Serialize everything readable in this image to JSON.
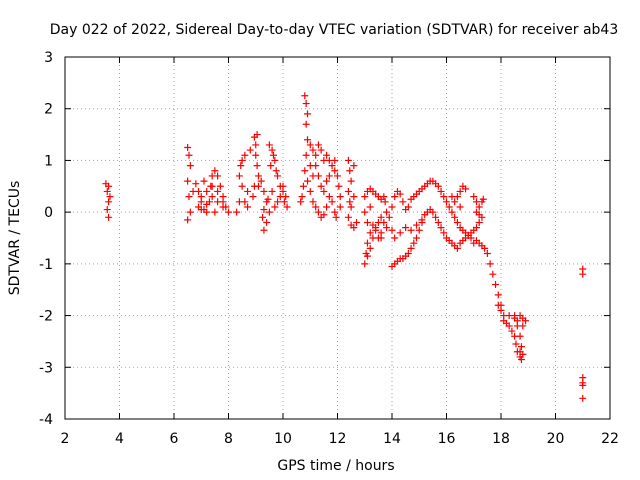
{
  "chart_data": {
    "type": "scatter",
    "title": "Day 022 of 2022, Sidereal Day-to-day VTEC variation (SDTVAR) for receiver ab43",
    "xlabel": "GPS time / hours",
    "ylabel": "SDTVAR / TECUs",
    "xlim": [
      2,
      22
    ],
    "ylim": [
      -4,
      3
    ],
    "xticks": [
      "2",
      "4",
      "6",
      "8",
      "10",
      "12",
      "14",
      "16",
      "18",
      "20",
      "22"
    ],
    "yticks": [
      "-4",
      "-3",
      "-2",
      "-1",
      "0",
      "1",
      "2",
      "3"
    ],
    "grid": true,
    "marker": "+",
    "color": "#ff0000",
    "series": [
      {
        "name": "SDTVAR",
        "points": [
          [
            3.5,
            0.55
          ],
          [
            3.55,
            0.4
          ],
          [
            3.6,
            0.2
          ],
          [
            3.55,
            0.05
          ],
          [
            3.6,
            -0.1
          ],
          [
            3.65,
            0.3
          ],
          [
            3.6,
            0.5
          ],
          [
            6.5,
            1.25
          ],
          [
            6.55,
            1.1
          ],
          [
            6.6,
            0.9
          ],
          [
            6.5,
            0.6
          ],
          [
            6.55,
            0.3
          ],
          [
            6.6,
            0.0
          ],
          [
            6.5,
            -0.15
          ],
          [
            6.7,
            0.4
          ],
          [
            6.8,
            0.55
          ],
          [
            6.9,
            0.4
          ],
          [
            7.0,
            0.2
          ],
          [
            7.1,
            0.05
          ],
          [
            7.2,
            0.0
          ],
          [
            7.3,
            0.2
          ],
          [
            7.35,
            0.5
          ],
          [
            7.4,
            0.7
          ],
          [
            7.5,
            0.8
          ],
          [
            7.6,
            0.7
          ],
          [
            7.7,
            0.5
          ],
          [
            7.8,
            0.3
          ],
          [
            7.9,
            0.1
          ],
          [
            8.0,
            0.0
          ],
          [
            7.8,
            0.2
          ],
          [
            7.6,
            0.4
          ],
          [
            7.4,
            0.5
          ],
          [
            7.2,
            0.4
          ],
          [
            7.0,
            0.3
          ],
          [
            6.9,
            0.1
          ],
          [
            7.0,
            0.05
          ],
          [
            7.2,
            0.15
          ],
          [
            7.4,
            0.3
          ],
          [
            7.6,
            0.2
          ],
          [
            7.8,
            0.1
          ],
          [
            7.5,
            0.0
          ],
          [
            7.1,
            0.6
          ],
          [
            8.3,
            0.0
          ],
          [
            8.4,
            0.2
          ],
          [
            8.5,
            0.5
          ],
          [
            8.4,
            0.7
          ],
          [
            8.45,
            0.9
          ],
          [
            8.6,
            1.1
          ],
          [
            8.8,
            1.2
          ],
          [
            9.0,
            1.1
          ],
          [
            9.05,
            0.9
          ],
          [
            9.1,
            0.7
          ],
          [
            8.95,
            0.5
          ],
          [
            8.7,
            0.4
          ],
          [
            8.6,
            0.2
          ],
          [
            8.7,
            0.1
          ],
          [
            8.9,
            0.3
          ],
          [
            9.1,
            0.5
          ],
          [
            9.2,
            0.6
          ],
          [
            9.3,
            0.4
          ],
          [
            9.4,
            0.2
          ],
          [
            9.5,
            0.0
          ],
          [
            9.4,
            -0.2
          ],
          [
            9.3,
            -0.35
          ],
          [
            9.25,
            -0.1
          ],
          [
            9.3,
            0.05
          ],
          [
            9.45,
            0.25
          ],
          [
            9.6,
            0.4
          ],
          [
            9.7,
            0.1
          ],
          [
            9.8,
            0.2
          ],
          [
            9.0,
            1.3
          ],
          [
            9.05,
            1.5
          ],
          [
            8.95,
            1.45
          ],
          [
            8.5,
            1.0
          ],
          [
            9.5,
            1.3
          ],
          [
            9.6,
            1.2
          ],
          [
            9.7,
            1.0
          ],
          [
            9.75,
            0.8
          ],
          [
            9.8,
            0.7
          ],
          [
            9.9,
            0.5
          ],
          [
            10.0,
            0.4
          ],
          [
            10.1,
            0.3
          ],
          [
            10.15,
            0.1
          ],
          [
            10.05,
            0.2
          ],
          [
            9.55,
            0.9
          ],
          [
            9.65,
            1.1
          ],
          [
            9.9,
            0.3
          ],
          [
            10.0,
            0.5
          ],
          [
            10.8,
            2.25
          ],
          [
            10.85,
            2.1
          ],
          [
            10.9,
            1.9
          ],
          [
            10.85,
            1.7
          ],
          [
            10.9,
            1.4
          ],
          [
            10.85,
            1.1
          ],
          [
            10.8,
            0.8
          ],
          [
            10.75,
            0.5
          ],
          [
            10.7,
            0.3
          ],
          [
            10.65,
            0.2
          ],
          [
            10.9,
            0.6
          ],
          [
            11.0,
            0.4
          ],
          [
            11.1,
            0.2
          ],
          [
            11.2,
            0.1
          ],
          [
            11.3,
            0.0
          ],
          [
            11.4,
            -0.1
          ],
          [
            11.5,
            -0.05
          ],
          [
            11.6,
            0.1
          ],
          [
            11.7,
            0.3
          ],
          [
            11.8,
            0.2
          ],
          [
            11.9,
            0.0
          ],
          [
            11.95,
            -0.1
          ],
          [
            11.0,
            1.3
          ],
          [
            11.1,
            1.2
          ],
          [
            11.2,
            1.1
          ],
          [
            11.3,
            1.3
          ],
          [
            11.4,
            1.2
          ],
          [
            11.5,
            1.0
          ],
          [
            11.6,
            1.1
          ],
          [
            11.7,
            1.0
          ],
          [
            11.8,
            0.9
          ],
          [
            11.9,
            0.8
          ],
          [
            11.7,
            0.7
          ],
          [
            11.6,
            0.6
          ],
          [
            11.5,
            0.4
          ],
          [
            11.4,
            0.5
          ],
          [
            11.3,
            0.7
          ],
          [
            11.2,
            0.9
          ],
          [
            11.1,
            0.7
          ],
          [
            11.0,
            0.9
          ],
          [
            11.9,
            1.0
          ],
          [
            12.0,
            0.7
          ],
          [
            12.05,
            0.5
          ],
          [
            12.1,
            0.3
          ],
          [
            12.1,
            0.1
          ],
          [
            12.4,
            1.0
          ],
          [
            12.45,
            0.8
          ],
          [
            12.5,
            0.6
          ],
          [
            12.4,
            0.4
          ],
          [
            12.45,
            0.2
          ],
          [
            12.5,
            0.1
          ],
          [
            12.6,
            0.9
          ],
          [
            12.6,
            0.3
          ],
          [
            12.4,
            -0.1
          ],
          [
            12.5,
            -0.25
          ],
          [
            12.6,
            -0.3
          ],
          [
            12.7,
            -0.2
          ],
          [
            13.0,
            0.3
          ],
          [
            13.1,
            0.4
          ],
          [
            13.2,
            0.45
          ],
          [
            13.3,
            0.4
          ],
          [
            13.4,
            0.35
          ],
          [
            13.5,
            0.3
          ],
          [
            13.6,
            0.25
          ],
          [
            13.7,
            0.3
          ],
          [
            13.75,
            0.2
          ],
          [
            13.8,
            0.0
          ],
          [
            13.7,
            -0.2
          ],
          [
            13.6,
            -0.4
          ],
          [
            13.5,
            -0.5
          ],
          [
            13.4,
            -0.35
          ],
          [
            13.3,
            -0.25
          ],
          [
            13.2,
            -0.4
          ],
          [
            13.1,
            -0.6
          ],
          [
            13.05,
            -0.8
          ],
          [
            13.0,
            -1.0
          ],
          [
            13.1,
            -0.85
          ],
          [
            13.2,
            -0.7
          ],
          [
            13.3,
            -0.5
          ],
          [
            13.4,
            -0.3
          ],
          [
            13.5,
            -0.2
          ],
          [
            13.6,
            -0.1
          ],
          [
            13.2,
            0.1
          ],
          [
            13.0,
            0.0
          ],
          [
            13.1,
            -0.2
          ],
          [
            14.0,
            -1.05
          ],
          [
            14.1,
            -1.0
          ],
          [
            14.2,
            -0.95
          ],
          [
            14.3,
            -0.9
          ],
          [
            14.4,
            -0.9
          ],
          [
            14.5,
            -0.85
          ],
          [
            14.6,
            -0.8
          ],
          [
            14.7,
            -0.7
          ],
          [
            14.8,
            -0.6
          ],
          [
            14.9,
            -0.5
          ],
          [
            15.0,
            -0.35
          ],
          [
            15.1,
            -0.2
          ],
          [
            15.2,
            -0.05
          ],
          [
            15.3,
            0.0
          ],
          [
            15.4,
            0.05
          ],
          [
            15.5,
            0.0
          ],
          [
            15.6,
            -0.1
          ],
          [
            15.7,
            -0.2
          ],
          [
            15.8,
            -0.3
          ],
          [
            15.9,
            -0.4
          ],
          [
            16.0,
            -0.5
          ],
          [
            16.1,
            -0.55
          ],
          [
            16.2,
            -0.6
          ],
          [
            16.3,
            -0.65
          ],
          [
            16.4,
            -0.7
          ],
          [
            16.5,
            -0.6
          ],
          [
            16.6,
            -0.55
          ],
          [
            16.7,
            -0.5
          ],
          [
            16.8,
            -0.45
          ],
          [
            16.9,
            -0.5
          ],
          [
            17.0,
            -0.6
          ],
          [
            17.1,
            -0.55
          ],
          [
            17.2,
            -0.6
          ],
          [
            17.3,
            -0.65
          ],
          [
            17.4,
            -0.7
          ],
          [
            17.5,
            -0.8
          ],
          [
            17.6,
            -1.0
          ],
          [
            17.7,
            -1.2
          ],
          [
            17.8,
            -1.4
          ],
          [
            17.9,
            -1.6
          ],
          [
            18.0,
            -1.8
          ],
          [
            18.1,
            -2.0
          ],
          [
            18.2,
            -2.15
          ],
          [
            18.3,
            -2.2
          ],
          [
            18.4,
            -2.3
          ],
          [
            18.5,
            -2.4
          ],
          [
            18.55,
            -2.55
          ],
          [
            18.6,
            -2.7
          ],
          [
            18.7,
            -2.8
          ],
          [
            18.75,
            -2.6
          ],
          [
            18.7,
            -2.4
          ],
          [
            18.6,
            -2.2
          ],
          [
            18.5,
            -2.0
          ],
          [
            14.0,
            0.1
          ],
          [
            14.1,
            0.3
          ],
          [
            14.2,
            0.4
          ],
          [
            14.3,
            0.35
          ],
          [
            14.4,
            0.2
          ],
          [
            14.5,
            0.05
          ],
          [
            14.6,
            0.1
          ],
          [
            14.7,
            0.25
          ],
          [
            14.8,
            0.3
          ],
          [
            14.9,
            0.35
          ],
          [
            15.0,
            0.4
          ],
          [
            15.1,
            0.45
          ],
          [
            15.2,
            0.5
          ],
          [
            15.3,
            0.55
          ],
          [
            15.4,
            0.6
          ],
          [
            15.5,
            0.6
          ],
          [
            15.6,
            0.55
          ],
          [
            15.7,
            0.5
          ],
          [
            15.8,
            0.4
          ],
          [
            15.9,
            0.3
          ],
          [
            16.0,
            0.2
          ],
          [
            16.1,
            0.1
          ],
          [
            16.2,
            0.0
          ],
          [
            16.3,
            -0.1
          ],
          [
            16.4,
            -0.2
          ],
          [
            16.5,
            -0.3
          ],
          [
            16.6,
            -0.35
          ],
          [
            16.7,
            -0.4
          ],
          [
            16.8,
            -0.45
          ],
          [
            16.9,
            -0.4
          ],
          [
            17.0,
            -0.35
          ],
          [
            17.1,
            -0.3
          ],
          [
            17.2,
            -0.2
          ],
          [
            17.3,
            -0.1
          ],
          [
            17.2,
            0.1
          ],
          [
            17.1,
            0.2
          ],
          [
            17.0,
            0.3
          ],
          [
            17.1,
            0.0
          ],
          [
            17.2,
            -0.05
          ],
          [
            17.3,
            0.2
          ],
          [
            17.35,
            0.25
          ],
          [
            16.7,
            0.45
          ],
          [
            16.6,
            0.5
          ],
          [
            16.5,
            0.4
          ],
          [
            16.4,
            0.3
          ],
          [
            16.3,
            0.2
          ],
          [
            16.2,
            0.3
          ],
          [
            16.5,
            0.1
          ],
          [
            13.6,
            -0.5
          ],
          [
            13.8,
            -0.3
          ],
          [
            13.9,
            -0.1
          ],
          [
            14.0,
            -0.35
          ],
          [
            14.1,
            -0.5
          ],
          [
            14.3,
            -0.4
          ],
          [
            14.5,
            -0.3
          ],
          [
            14.7,
            -0.35
          ],
          [
            14.9,
            -0.25
          ],
          [
            15.1,
            -0.15
          ],
          [
            17.9,
            -1.8
          ],
          [
            18.0,
            -1.9
          ],
          [
            18.1,
            -2.1
          ],
          [
            18.3,
            -2.0
          ],
          [
            18.5,
            -2.05
          ],
          [
            18.6,
            -2.1
          ],
          [
            18.7,
            -2.0
          ],
          [
            18.8,
            -2.05
          ],
          [
            18.9,
            -2.1
          ],
          [
            18.8,
            -2.2
          ],
          [
            18.7,
            -2.7
          ],
          [
            18.8,
            -2.75
          ],
          [
            18.75,
            -2.85
          ],
          [
            21.0,
            -1.1
          ],
          [
            21.0,
            -1.2
          ],
          [
            21.0,
            -3.2
          ],
          [
            21.0,
            -3.3
          ],
          [
            21.0,
            -3.35
          ],
          [
            21.0,
            -3.6
          ]
        ]
      }
    ]
  }
}
